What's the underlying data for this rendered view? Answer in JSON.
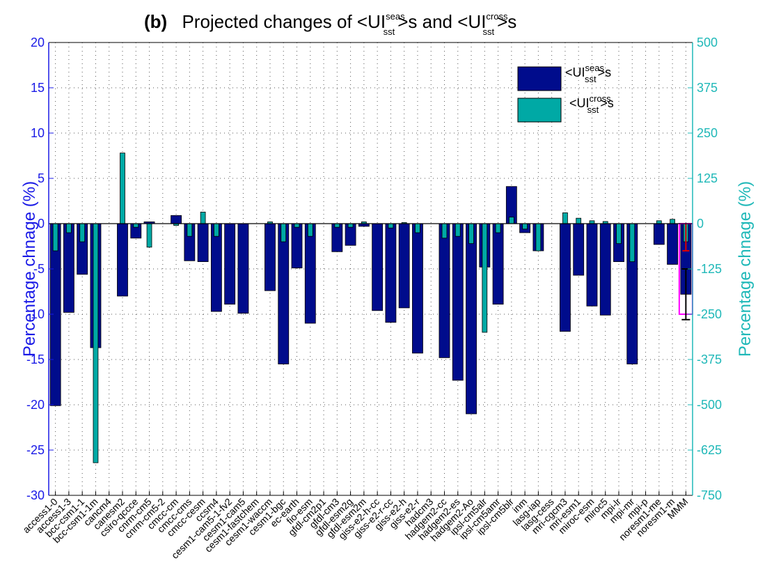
{
  "chart_data": {
    "type": "bar",
    "title": {
      "panel": "(b)",
      "lead": "Projected changes of <UI",
      "sup1": "seas",
      "sub1": "sst",
      "mid": ">s  and <UI",
      "sup2": "cross",
      "sub2": "sst",
      "tail": ">s"
    },
    "ylabel_left": "Percentage chnage (%)",
    "ylabel_right": "Percentage chnage (%)",
    "ylim_left": [
      -30,
      20
    ],
    "ylim_right": [
      -750,
      500
    ],
    "yticks_left": [
      "-30",
      "-25",
      "-20",
      "-15",
      "-10",
      "-5",
      "0",
      "5",
      "10",
      "15",
      "20"
    ],
    "yticks_right": [
      "-750",
      "-625",
      "-500",
      "-375",
      "-250",
      "-125",
      "0",
      "125",
      "250",
      "375",
      "500"
    ],
    "grid": true,
    "legend_position": "top-right",
    "colors": {
      "seas": "#000c8c",
      "cross": "#00a9a5",
      "left_axis": "#1a1ae6",
      "right_axis": "#1fb8b8",
      "mmm_box": "#ff00ff",
      "error_inner": "#dd0000",
      "error_outer": "#000000"
    },
    "categories": [
      "access1-0",
      "access1-3",
      "bcc-csm1-1",
      "bcc-csm1-1m",
      "cancm4",
      "canesm2",
      "csiro-qccce",
      "cnrm-cm5",
      "cnrm-cm5-2",
      "cmcc-cm",
      "cmcc-cms",
      "cmcc-cesm",
      "ccsm4",
      "cesm1-cam5-1-fv2",
      "cesm1-cam5",
      "cesm1-fastchem",
      "cesm1-waccm",
      "cesm1-bgc",
      "ec-earth",
      "fio-esm",
      "gfdl-cm2p1",
      "gfdl-cm3",
      "gfdl-esm2g",
      "gfdl-esm2m",
      "giss-e2-h-cc",
      "giss-e2-r-cc",
      "giss-e2-h",
      "giss-e2-r",
      "hadcm3",
      "hadgem2-cc",
      "hadgem2-es",
      "hadgem2-Ao",
      "ipsl-cm5alr",
      "ipsl-cm5amr",
      "ipsl-cm5blr",
      "inm",
      "lasg-iap",
      "lasg-cess",
      "mri-cgcm3",
      "mri-esm1",
      "miroc-esm",
      "miroc5",
      "mpi-lr",
      "mpi-mr",
      "mpi-p",
      "noresm1-me",
      "noresm1-m",
      "MMM"
    ],
    "series": [
      {
        "name": "<UI seas sst>s",
        "axis": "left",
        "values": [
          -20.1,
          -9.8,
          -5.6,
          -13.7,
          0,
          -8.0,
          -1.6,
          0.2,
          0,
          0.9,
          -4.1,
          -4.2,
          -9.7,
          -8.9,
          -9.9,
          0,
          -7.4,
          -15.5,
          -4.9,
          -11.0,
          0,
          -3.1,
          -2.4,
          -0.3,
          -9.6,
          -10.9,
          -9.3,
          -14.3,
          0,
          -14.8,
          -17.3,
          -21.0,
          -4.8,
          -8.9,
          4.1,
          -1.0,
          -3.0,
          0,
          -11.9,
          -5.7,
          -9.1,
          -10.1,
          -4.2,
          -15.5,
          0,
          -2.3,
          -4.5,
          -7.8
        ]
      },
      {
        "name": "<UI cross sst>s",
        "axis": "right",
        "values": [
          -75,
          -25,
          -50,
          -660,
          0,
          195,
          -10,
          -65,
          0,
          -5,
          -35,
          32,
          -35,
          0,
          0,
          0,
          5,
          -50,
          -10,
          -35,
          0,
          -10,
          -10,
          5,
          0,
          -12,
          3,
          -25,
          0,
          -40,
          -35,
          -55,
          -300,
          -25,
          18,
          -15,
          -75,
          0,
          30,
          15,
          8,
          6,
          -55,
          -105,
          0,
          8,
          12,
          -50
        ]
      }
    ],
    "mmm_errorbars": [
      {
        "series": "seas",
        "low": -10.6,
        "high": -5.0
      },
      {
        "series": "cross",
        "low": -75,
        "high": 0
      }
    ],
    "legend": [
      {
        "label": "<UI",
        "sup": "seas",
        "sub": "sst",
        "tail": ">s"
      },
      {
        "label": "<UI",
        "sup": "cross",
        "sub": "sst",
        "tail": ">s"
      }
    ]
  }
}
